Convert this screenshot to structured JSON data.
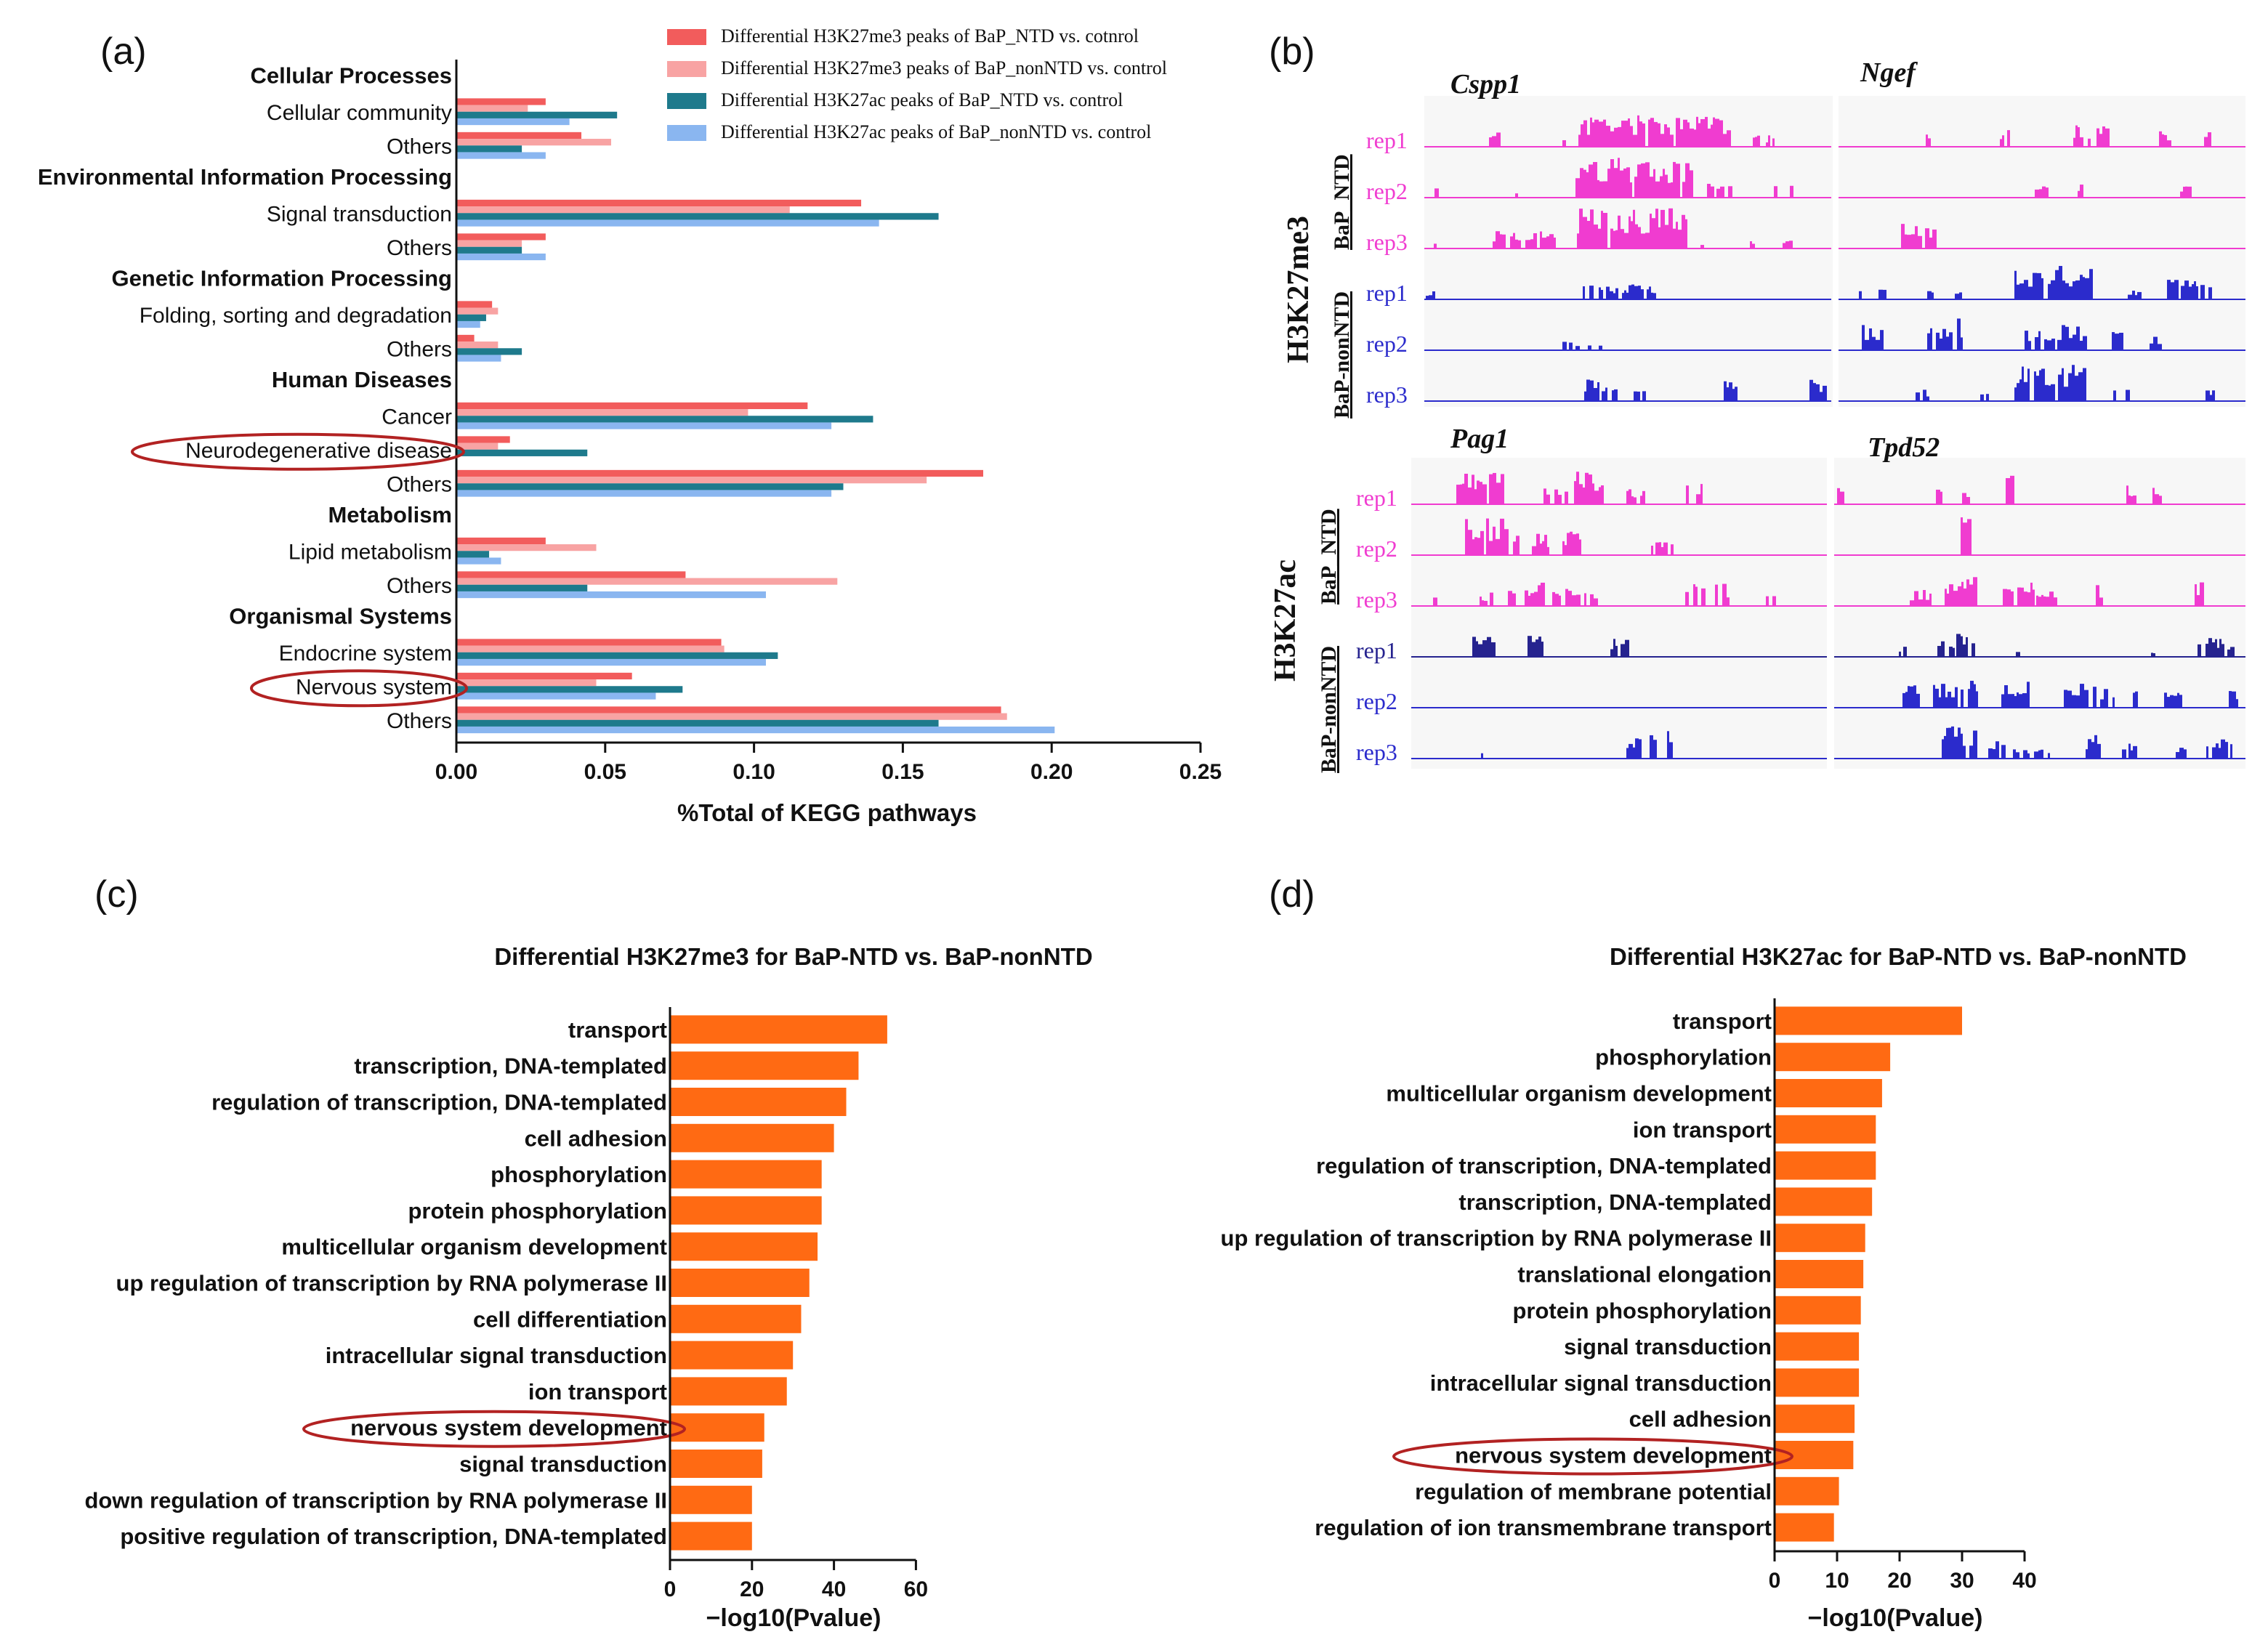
{
  "panel_labels": [
    "(a)",
    "(b)",
    "(c)",
    "(d)"
  ],
  "colors": {
    "ntd_me3": "#f25c5c",
    "nonntd_me3": "#f8a3a3",
    "ntd_ac": "#1e7a8c",
    "nonntd_ac": "#8ab6f0",
    "go_bar": "#ff6a13",
    "pink_track": "#f03cd0",
    "blue_track": "#2b2bcc",
    "navy_track": "#26238f",
    "highlight": "#b22222"
  },
  "chart_data": [
    {
      "id": "a",
      "type": "bar",
      "orientation": "horizontal",
      "xlabel": "%Total of KEGG pathways",
      "xlim": [
        0,
        0.25
      ],
      "xticks": [
        "0.00",
        "0.05",
        "0.10",
        "0.15",
        "0.20",
        "0.25"
      ],
      "series_names": [
        "Differential H3K27me3 peaks of BaP_NTD vs. cotnrol",
        "Differential H3K27me3 peaks of BaP_nonNTD vs. control",
        "Differential H3K27ac peaks of BaP_NTD vs. control",
        "Differential H3K27ac peaks of BaP_nonNTD vs. control"
      ],
      "rows": [
        {
          "label": "Cellular Processes",
          "header": true
        },
        {
          "label": "Cellular community",
          "values": [
            0.03,
            0.024,
            0.054,
            0.038
          ]
        },
        {
          "label": "Others",
          "values": [
            0.042,
            0.052,
            0.022,
            0.03
          ]
        },
        {
          "label": "Environmental Information Processing",
          "header": true
        },
        {
          "label": "Signal transduction",
          "values": [
            0.136,
            0.112,
            0.162,
            0.142
          ]
        },
        {
          "label": "Others",
          "values": [
            0.03,
            0.022,
            0.022,
            0.03
          ]
        },
        {
          "label": "Genetic Information Processing",
          "header": true
        },
        {
          "label": "Folding, sorting and degradation",
          "values": [
            0.012,
            0.014,
            0.01,
            0.008
          ]
        },
        {
          "label": "Others",
          "values": [
            0.006,
            0.014,
            0.022,
            0.015
          ]
        },
        {
          "label": "Human Diseases",
          "header": true
        },
        {
          "label": "Cancer",
          "values": [
            0.118,
            0.098,
            0.14,
            0.126
          ]
        },
        {
          "label": "Neurodegenerative disease",
          "values": [
            0.018,
            0.014,
            0.044,
            0.0
          ],
          "highlight": true
        },
        {
          "label": "Others",
          "values": [
            0.177,
            0.158,
            0.13,
            0.126
          ]
        },
        {
          "label": "Metabolism",
          "header": true
        },
        {
          "label": "Lipid metabolism",
          "values": [
            0.03,
            0.047,
            0.011,
            0.015
          ]
        },
        {
          "label": "Others",
          "values": [
            0.077,
            0.128,
            0.044,
            0.104
          ]
        },
        {
          "label": "Organismal Systems",
          "header": true
        },
        {
          "label": "Endocrine system",
          "values": [
            0.089,
            0.09,
            0.108,
            0.104
          ]
        },
        {
          "label": "Nervous system",
          "values": [
            0.059,
            0.047,
            0.076,
            0.067
          ],
          "highlight": true
        },
        {
          "label": "Others",
          "values": [
            0.183,
            0.185,
            0.162,
            0.201
          ]
        }
      ]
    },
    {
      "id": "c",
      "type": "bar",
      "orientation": "horizontal",
      "title": "Differential H3K27me3 for BaP-NTD vs. BaP-nonNTD",
      "xlabel": "−log10(Pvalue)",
      "xlim": [
        0,
        60
      ],
      "xticks": [
        "0",
        "20",
        "40",
        "60"
      ],
      "categories": [
        "transport",
        "transcription, DNA-templated",
        "regulation of transcription, DNA-templated",
        "cell adhesion",
        "phosphorylation",
        "protein phosphorylation",
        "multicellular organism development",
        "up regulation of transcription by RNA polymerase II",
        "cell differentiation",
        "intracellular signal transduction",
        "ion transport",
        "nervous system development",
        "signal transduction",
        "down regulation of transcription by RNA polymerase II",
        "positive regulation of transcription, DNA-templated"
      ],
      "values": [
        53,
        46,
        43,
        40,
        37,
        37,
        36,
        34,
        32,
        30,
        28.5,
        23,
        22.5,
        20,
        20
      ],
      "highlight_index": 11
    },
    {
      "id": "d",
      "type": "bar",
      "orientation": "horizontal",
      "title": "Differential H3K27ac for BaP-NTD vs. BaP-nonNTD",
      "xlabel": "−log10(Pvalue)",
      "xlim": [
        0,
        40
      ],
      "xticks": [
        "0",
        "10",
        "20",
        "30",
        "40"
      ],
      "categories": [
        "transport",
        "phosphorylation",
        "multicellular organism development",
        "ion transport",
        "regulation of transcription, DNA-templated",
        "transcription, DNA-templated",
        "up regulation of transcription by RNA polymerase II",
        "translational elongation",
        "protein phosphorylation",
        "signal transduction",
        "intracellular signal transduction",
        "cell adhesion",
        "nervous system development",
        "regulation of membrane potential",
        "regulation of ion transmembrane transport"
      ],
      "values": [
        30,
        18.5,
        17.2,
        16.2,
        16.2,
        15.6,
        14.5,
        14.2,
        13.8,
        13.5,
        13.5,
        12.8,
        12.6,
        10.3,
        9.5
      ],
      "highlight_index": 12
    }
  ],
  "tracks": {
    "gene_top_left": "Cspp1",
    "gene_top_right": "Ngef",
    "gene_bottom_left": "Pag1",
    "gene_bottom_right": "Tpd52",
    "mark_top": "H3K27me3",
    "mark_bottom": "H3K27ac",
    "group_ntd": "BaP_NTD",
    "group_nonntd": "BaP-nonNTD",
    "rep_labels": [
      "rep1",
      "rep2",
      "rep3"
    ]
  }
}
